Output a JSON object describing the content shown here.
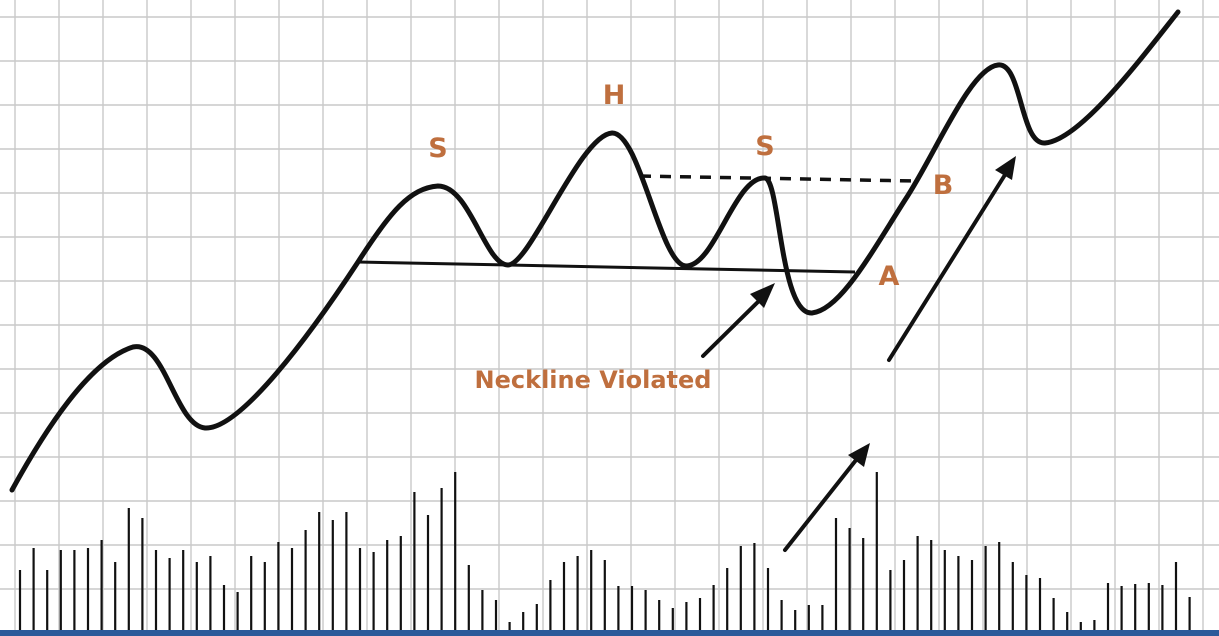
{
  "labels": {
    "left_shoulder": "S",
    "head": "H",
    "right_shoulder": "S",
    "point_a": "A",
    "point_b": "B",
    "neckline_violated": "Neckline Violated"
  },
  "colors": {
    "label": "#bf6f3e",
    "ink": "#111111",
    "grid": "#c9c9c9",
    "bottom_bar": "#2b5a9a"
  },
  "icons": {
    "arrow": "arrow-up-right-icon"
  }
}
